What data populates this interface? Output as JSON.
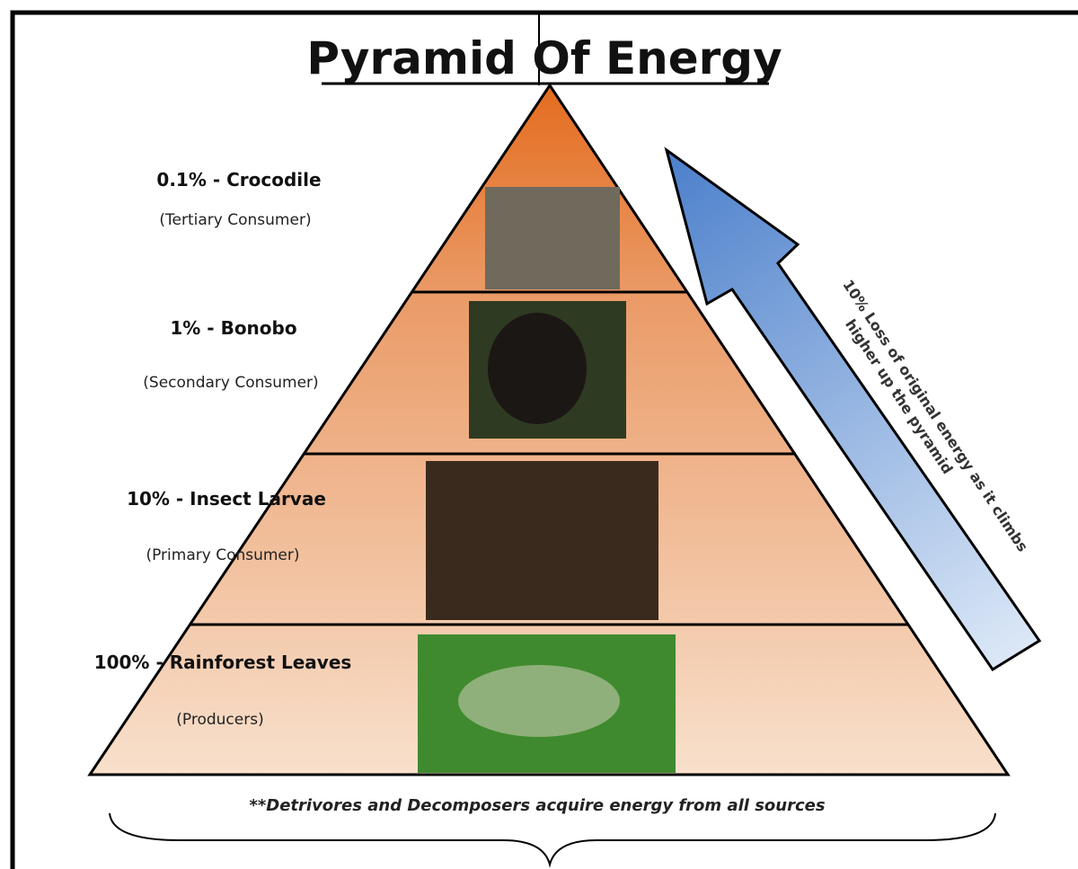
{
  "title": "Pyramid Of Energy",
  "levels": [
    {
      "label": "0.1% - Crocodile",
      "role": "(Tertiary Consumer)"
    },
    {
      "label": "1% - Bonobo",
      "role": "(Secondary Consumer)"
    },
    {
      "label": "10% - Insect Larvae",
      "role": "(Primary Consumer)"
    },
    {
      "label": "100% - Rainforest Leaves",
      "role": "(Producers)"
    }
  ],
  "arrow": {
    "lines": [
      "10% Loss of original energy as it climbs",
      "higher up the pyramid"
    ]
  },
  "footnote": "**Detrivores and Decomposers acquire energy from all sources"
}
